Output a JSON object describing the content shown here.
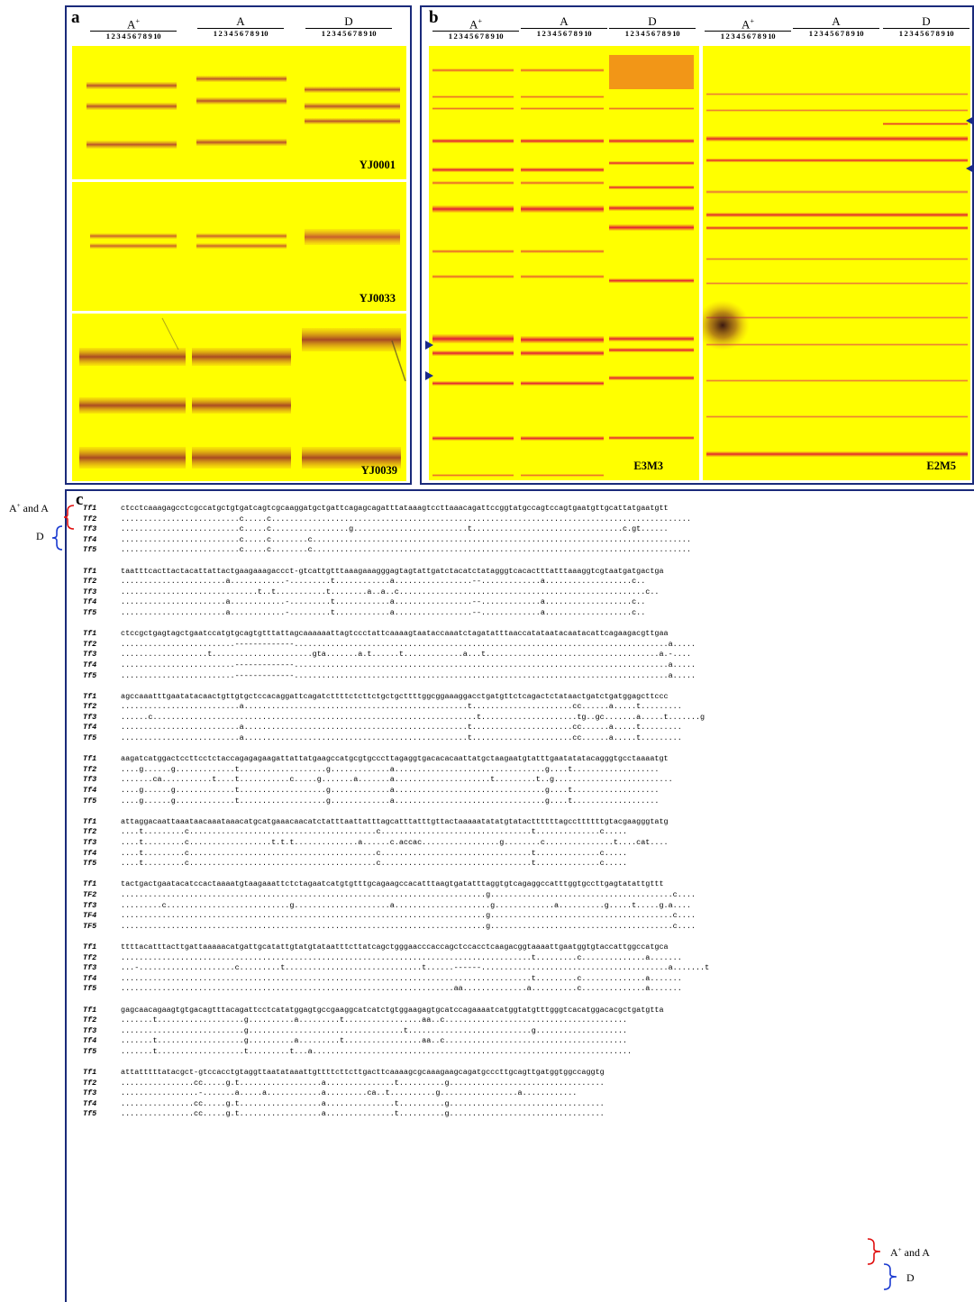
{
  "panel_a": {
    "label": "a",
    "groups": [
      {
        "label": "A",
        "superscript": "+",
        "lanes": "1 2 3 4 5 6 7 8 9 10"
      },
      {
        "label": "A",
        "superscript": "",
        "lanes": "1 2 3 4 5 6 7 8 9 10"
      },
      {
        "label": "D",
        "superscript": "",
        "lanes": "1 2 3 4 5 6 7 8 9 10"
      }
    ],
    "gels": [
      {
        "name": "YJ0001"
      },
      {
        "name": "YJ0033"
      },
      {
        "name": "YJ0039"
      }
    ]
  },
  "panel_b": {
    "label": "b",
    "groups": [
      {
        "label": "A",
        "superscript": "+",
        "lanes": "1 2 3 4 5 6 7 8 9 10"
      },
      {
        "label": "A",
        "superscript": "",
        "lanes": "1 2 3 4 5 6 7 8 9 10"
      },
      {
        "label": "D",
        "superscript": "",
        "lanes": "1 2 3 4 5 6 7 8 9 10"
      },
      {
        "label": "A",
        "superscript": "+",
        "lanes": "1 2 3 4 5 6 7 8 9 10"
      },
      {
        "label": "A",
        "superscript": "",
        "lanes": "1 2 3 4 5 6 7 8 9 10"
      },
      {
        "label": "D",
        "superscript": "",
        "lanes": "1 2 3 4 5 6 7 8 9 10"
      }
    ],
    "gels": [
      {
        "name": "E3M3"
      },
      {
        "name": "E2M5"
      }
    ]
  },
  "panel_c": {
    "label": "c",
    "group_labels": {
      "a_plus": "A",
      "a_plus_sup": "+",
      "a_plus_rest": " and A",
      "d": "D"
    },
    "blocks": [
      [
        [
          "Tf1",
          "ctcctcaaagagcctcgccatgctgtgatcagtcgcaaggatgctgattcagagcagatttataaagtccttaaacagattccggtatgccagtccagtgaatgttgcattatgaatgtt"
        ],
        [
          "Tf2",
          "..........................c.....c............................................................................................"
        ],
        [
          "Tf3",
          "..........................c.....c.................g.........................t.................................c.gt......"
        ],
        [
          "Tf4",
          "..........................c.....c........c..................................................................................."
        ],
        [
          "Tf5",
          "..........................c.....c........c..................................................................................."
        ]
      ],
      [
        [
          "Tf1",
          "taatttcacttactacattattactgaagaaagaccct-gtcattgtttaaagaaagggagtagtattgatctacatctatagggtcacactttatttaaaggtcgtaatgatgactga"
        ],
        [
          "Tf2",
          ".......................a............-.........t............a.................--.............a...................c.."
        ],
        [
          "Tf3",
          "..............................t..t...........t........a..a..c......................................................c.."
        ],
        [
          "Tf4",
          ".......................a............-.........t............a.................--.............a...................c.."
        ],
        [
          "Tf5",
          ".......................a............-.........t............a.................--.............a...................c.."
        ]
      ],
      [
        [
          "Tf1",
          "ctccgctgagtagctgaatccatgtgcagtgtttattagcaaaaaattagtccctattcaaaagtaataccaaatctagatatttaaccatataatacaatacattcagaagacgttgaa"
        ],
        [
          "Tf2",
          ".........................-------------..................................................................................a....."
        ],
        [
          "Tf3",
          "...................t......................gta.......a.t......t.............a...t......................................a.-...."
        ],
        [
          "Tf4",
          ".........................-------------..................................................................................a....."
        ],
        [
          "Tf5",
          ".........................-------------..................................................................................a....."
        ]
      ],
      [
        [
          "Tf1",
          "agccaaatttgaatatacaactgttgtgctccacaggattcagatcttttctcttctgctgcttttggcggaaaggacctgatgttctcagactctataactgatctgatggagcttccc"
        ],
        [
          "Tf2",
          "..........................a.................................................t......................cc......a.....t........."
        ],
        [
          "Tf3",
          "......c.......................................................................t.....................tg..gc.......a.....t.......g"
        ],
        [
          "Tf4",
          "..........................a.................................................t......................cc......a.....t........."
        ],
        [
          "Tf5",
          "..........................a.................................................t......................cc......a.....t........."
        ]
      ],
      [
        [
          "Tf1",
          "aagatcatggactccttcctctaccagagagaagattattatgaagccatgcgtgcccttagaggtgacacacaattatgctaagaatgtatttgaatatatacagggtgcctaaaatgt"
        ],
        [
          "Tf2",
          "....g......g.............t...................g.............a.................................g....t..................."
        ],
        [
          "Tf3",
          ".......ca...........t....t...........c.....g.......a.......a.....................t.........t..g.........................."
        ],
        [
          "Tf4",
          "....g......g.............t...................g.............a.................................g....t..................."
        ],
        [
          "Tf5",
          "....g......g.............t...................g.............a.................................g....t..................."
        ]
      ],
      [
        [
          "Tf1",
          "attaggacaattaaataacaaataaacatgcatgaaacaacatctatttaattatttagcatttatttgttactaaaaatatatgtatacttttttagccttttttgtacgaagggtatg"
        ],
        [
          "Tf2",
          "....t.........c.........................................c.................................t..............c....."
        ],
        [
          "Tf3",
          "....t.........c..................t.t.t..............a......c.accac.................g........c...............t....cat...."
        ],
        [
          "Tf4",
          "....t.........c.........................................c.................................t..............c....."
        ],
        [
          "Tf5",
          "....t.........c.........................................c.................................t..............c....."
        ]
      ],
      [
        [
          "Tf1",
          "tactgactgaatacatccactaaaatgtaagaaattctctagaatcatgtgtttgcagaagccacatttaagtgatatttaggtgtcagaggccatttggtgccttgagtatattgttt"
        ],
        [
          "TF2",
          "................................................................................g........................................c...."
        ],
        [
          "Tf3",
          ".........c...........................g.....................a.....................g.............a..........g.....t.....g.a...."
        ],
        [
          "TF4",
          "................................................................................g........................................c...."
        ],
        [
          "TF5",
          "................................................................................g........................................c...."
        ]
      ],
      [
        [
          "Tf1",
          "ttttacatttacttgattaaaaacatgattgcatattgtatgtataatttcttatcagctgggaacccaccagctccacctcaagacggtaaaattgaatggtgtaccattggccatgca"
        ],
        [
          "Tf2",
          "..........................................................................................t.........c..............a......."
        ],
        [
          "Tf3",
          "...-.....................c.........t..............................t......------.........................................a.......t"
        ],
        [
          "Tf4",
          "..........................................................................................t.........c..............a......."
        ],
        [
          "Tf5",
          ".........................................................................aa..............a..........c..............a......."
        ]
      ],
      [
        [
          "Tf1",
          "gagcaacagaagtgtgacagtttacagattcctcatatggagtgccgaaggcatcatctgtggaagagtgcatccagaaaatcatggtatgtttgggtcacatggacacgctgatgtta"
        ],
        [
          "Tf2",
          ".......t...................g..........a.........t.................aa..c........................................"
        ],
        [
          "Tf3",
          "...........................g..................................t...........................g...................."
        ],
        [
          "Tf4",
          ".......t...................g..........a.........t.................aa..c........................................"
        ],
        [
          "Tf5",
          ".......t...................t.........t...a......................................................................"
        ]
      ],
      [
        [
          "Tf1",
          "attatttttatacgct-gtccacctgtaggttaatataaattgttttcttcttgacttcaaaagcgcaaagaagcagatgcccttgcagttgatggtggccaggtg"
        ],
        [
          "Tf2",
          "................cc.....g.t..................a...............t..........g.................................."
        ],
        [
          "Tf3",
          ".................-.......a.....a............a.........ca..t..........g.................a............"
        ],
        [
          "Tf4",
          "................cc.....g.t..................a...............t..........g.................................."
        ],
        [
          "Tf5",
          "................cc.....g.t..................a...............t..........g.................................."
        ]
      ]
    ]
  }
}
